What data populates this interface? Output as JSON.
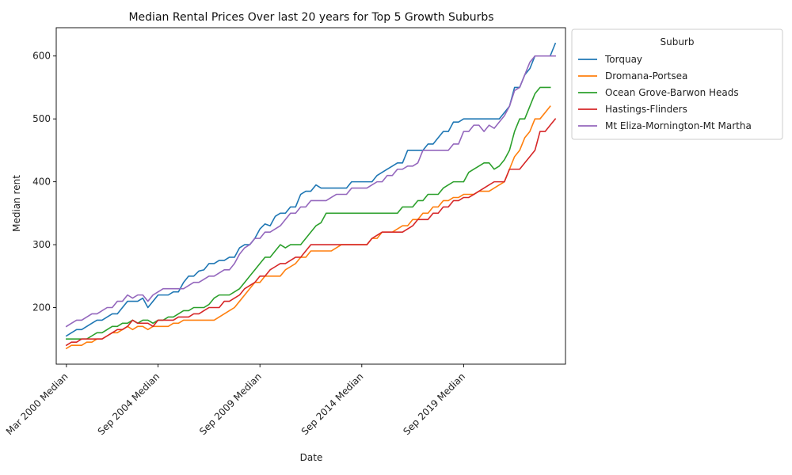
{
  "chart_data": {
    "type": "line",
    "title": "Median Rental Prices Over last 20 years for Top 5 Growth Suburbs",
    "xlabel": "Date",
    "ylabel": "Median rent",
    "x_ticks": [
      {
        "label": "Mar 2000 Median",
        "index": 0
      },
      {
        "label": "Sep 2004 Median",
        "index": 18
      },
      {
        "label": "Sep 2009 Median",
        "index": 38
      },
      {
        "label": "Sep 2014 Median",
        "index": 58
      },
      {
        "label": "Sep 2019 Median",
        "index": 78
      }
    ],
    "y_ticks": [
      200,
      300,
      400,
      500,
      600
    ],
    "xlim": [
      -2,
      98
    ],
    "ylim": [
      110,
      645
    ],
    "grid": false,
    "legend": {
      "title": "Suburb",
      "placement": "outside-top-right"
    },
    "series": [
      {
        "name": "Torquay",
        "color": "#1f77b4",
        "values": [
          155,
          160,
          165,
          165,
          170,
          175,
          180,
          180,
          185,
          190,
          190,
          200,
          210,
          210,
          210,
          215,
          200,
          210,
          220,
          220,
          220,
          225,
          225,
          240,
          250,
          250,
          258,
          260,
          270,
          270,
          275,
          275,
          280,
          280,
          295,
          300,
          300,
          310,
          325,
          333,
          330,
          345,
          350,
          350,
          360,
          360,
          380,
          385,
          385,
          395,
          390,
          390,
          390,
          390,
          390,
          390,
          400,
          400,
          400,
          400,
          400,
          410,
          415,
          420,
          425,
          430,
          430,
          450,
          450,
          450,
          450,
          460,
          460,
          470,
          480,
          480,
          495,
          495,
          500,
          500,
          500,
          500,
          500,
          500,
          500,
          500,
          510,
          520,
          550,
          550,
          570,
          580,
          600,
          600,
          600,
          600,
          620
        ]
      },
      {
        "name": "Dromana-Portsea",
        "color": "#ff7f0e",
        "values": [
          135,
          140,
          140,
          140,
          145,
          145,
          150,
          150,
          155,
          160,
          160,
          165,
          170,
          165,
          170,
          170,
          165,
          170,
          170,
          170,
          170,
          175,
          175,
          180,
          180,
          180,
          180,
          180,
          180,
          180,
          185,
          190,
          195,
          200,
          210,
          220,
          230,
          240,
          240,
          250,
          250,
          250,
          250,
          260,
          265,
          270,
          280,
          280,
          290,
          290,
          290,
          290,
          290,
          295,
          300,
          300,
          300,
          300,
          300,
          300,
          310,
          310,
          320,
          320,
          320,
          325,
          330,
          330,
          340,
          340,
          350,
          350,
          360,
          360,
          370,
          370,
          375,
          375,
          380,
          380,
          380,
          385,
          385,
          385,
          390,
          395,
          400,
          420,
          440,
          450,
          470,
          480,
          500,
          500,
          510,
          520
        ]
      },
      {
        "name": "Ocean Grove-Barwon Heads",
        "color": "#2ca02c",
        "values": [
          150,
          150,
          150,
          150,
          150,
          155,
          160,
          160,
          165,
          170,
          170,
          175,
          175,
          180,
          175,
          180,
          180,
          175,
          180,
          180,
          185,
          185,
          190,
          195,
          195,
          200,
          200,
          200,
          205,
          215,
          220,
          220,
          220,
          225,
          230,
          240,
          250,
          260,
          270,
          280,
          280,
          290,
          300,
          295,
          300,
          300,
          300,
          310,
          320,
          330,
          335,
          350,
          350,
          350,
          350,
          350,
          350,
          350,
          350,
          350,
          350,
          350,
          350,
          350,
          350,
          350,
          360,
          360,
          360,
          370,
          370,
          380,
          380,
          380,
          390,
          395,
          400,
          400,
          400,
          415,
          420,
          425,
          430,
          430,
          420,
          425,
          435,
          450,
          480,
          500,
          500,
          520,
          540,
          550,
          550,
          550
        ]
      },
      {
        "name": "Hastings-Flinders",
        "color": "#d62728",
        "values": [
          140,
          145,
          145,
          150,
          150,
          150,
          150,
          150,
          155,
          160,
          165,
          165,
          170,
          180,
          175,
          175,
          175,
          170,
          180,
          180,
          180,
          180,
          185,
          185,
          185,
          190,
          190,
          195,
          200,
          200,
          200,
          210,
          210,
          215,
          220,
          230,
          235,
          240,
          250,
          250,
          260,
          265,
          270,
          270,
          275,
          280,
          280,
          290,
          300,
          300,
          300,
          300,
          300,
          300,
          300,
          300,
          300,
          300,
          300,
          300,
          310,
          315,
          320,
          320,
          320,
          320,
          320,
          325,
          330,
          340,
          340,
          340,
          350,
          350,
          360,
          360,
          370,
          370,
          375,
          375,
          380,
          385,
          390,
          395,
          400,
          400,
          400,
          420,
          420,
          420,
          430,
          440,
          450,
          480,
          480,
          490,
          500
        ]
      },
      {
        "name": "Mt Eliza-Mornington-Mt Martha",
        "color": "#9467bd",
        "values": [
          170,
          175,
          180,
          180,
          185,
          190,
          190,
          195,
          200,
          200,
          210,
          210,
          220,
          215,
          220,
          220,
          210,
          220,
          225,
          230,
          230,
          230,
          230,
          230,
          235,
          240,
          240,
          245,
          250,
          250,
          255,
          260,
          260,
          270,
          285,
          295,
          300,
          310,
          310,
          320,
          320,
          325,
          330,
          340,
          350,
          350,
          360,
          360,
          370,
          370,
          370,
          370,
          375,
          380,
          380,
          380,
          390,
          390,
          390,
          390,
          395,
          400,
          400,
          410,
          410,
          420,
          420,
          425,
          425,
          430,
          450,
          450,
          450,
          450,
          450,
          450,
          460,
          460,
          480,
          480,
          490,
          490,
          480,
          490,
          485,
          495,
          505,
          520,
          545,
          550,
          570,
          590,
          600,
          600,
          600,
          600,
          600
        ]
      }
    ]
  }
}
